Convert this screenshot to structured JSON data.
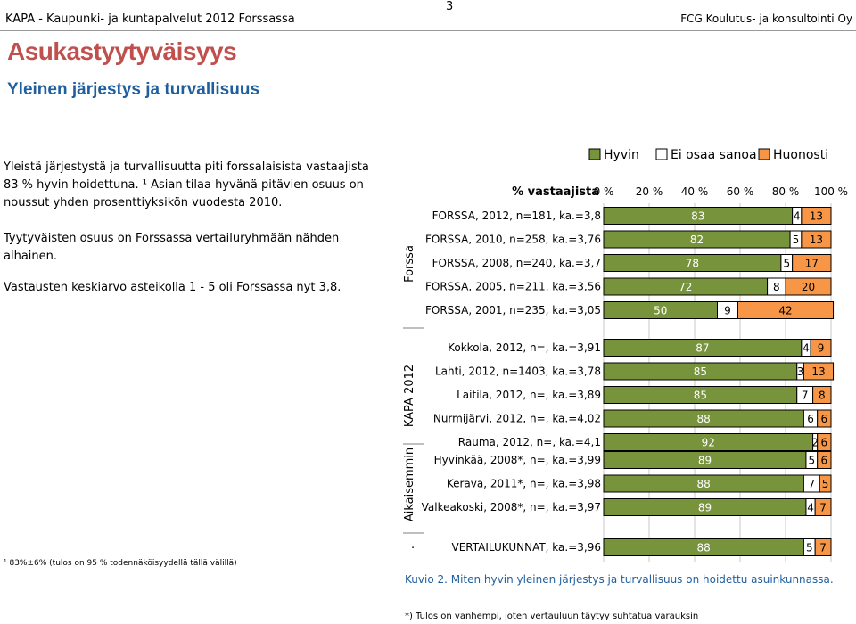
{
  "header": {
    "left": "KAPA - Kaupunki- ja kuntapalvelut 2012 Forssassa",
    "page_number": "3",
    "right": "FCG Koulutus- ja konsultointi Oy"
  },
  "title": "Asukastyytyväisyys",
  "subtitle": "Yleinen järjestys ja turvallisuus",
  "paragraphs": [
    "Yleistä järjestystä ja turvallisuutta piti forssalaisista vastaajista 83 % hyvin hoidettuna. ¹ Asian tilaa hyvänä pitävien osuus on noussut yhden prosenttiyksikön vuodesta 2010.",
    "Tyytyväisten osuus on Forssassa vertailuryhmään nähden alhainen.",
    "Vastausten keskiarvo asteikolla 1 - 5 oli Forssassa nyt 3,8."
  ],
  "footnote": "¹ 83%±6% (tulos on 95 % todennäköisyydellä tällä välillä)",
  "caption": "Kuvio 2. Miten hyvin yleinen järjestys ja turvallisuus on hoidettu asuinkunnassa.",
  "bottom_note": "*) Tulos on vanhempi, joten vertauluun täytyy suhtatua varauksin",
  "colors": {
    "hyvin": "#77933c",
    "ei_osaa": "#ffffff",
    "huonosti": "#f79646",
    "caption": "#1f5f9f",
    "title": "#c0504d",
    "subtitle": "#1f5f9f"
  },
  "chart_data": {
    "type": "bar",
    "orientation": "horizontal",
    "stacked": true,
    "axis_title": "% vastaajista",
    "x_ticks": [
      "0 %",
      "20 %",
      "40 %",
      "60 %",
      "80 %",
      "100 %"
    ],
    "xlim": [
      0,
      100
    ],
    "legend": [
      "Hyvin",
      "Ei osaa sanoa",
      "Huonosti"
    ],
    "legend_position": "top",
    "groups": [
      {
        "label": "Forssa",
        "rows": [
          {
            "label": "FORSSA, 2012, n=181, ka.=3,8",
            "values": [
              83,
              4,
              13
            ]
          },
          {
            "label": "FORSSA, 2010, n=258, ka.=3,76",
            "values": [
              82,
              5,
              13
            ]
          },
          {
            "label": "FORSSA, 2008, n=240, ka.=3,7",
            "values": [
              78,
              5,
              17
            ]
          },
          {
            "label": "FORSSA, 2005, n=211, ka.=3,56",
            "values": [
              72,
              8,
              20
            ]
          },
          {
            "label": "FORSSA, 2001, n=235, ka.=3,05",
            "values": [
              50,
              9,
              42
            ]
          }
        ]
      },
      {
        "label": "KAPA 2012",
        "rows": [
          {
            "label": "Kokkola, 2012, n=, ka.=3,91",
            "values": [
              87,
              4,
              9
            ]
          },
          {
            "label": "Lahti, 2012, n=1403, ka.=3,78",
            "values": [
              85,
              3,
              13
            ]
          },
          {
            "label": "Laitila, 2012, n=, ka.=3,89",
            "values": [
              85,
              7,
              8
            ]
          },
          {
            "label": "Nurmijärvi, 2012, n=, ka.=4,02",
            "values": [
              88,
              6,
              6
            ]
          },
          {
            "label": "Rauma, 2012, n=, ka.=4,1",
            "values": [
              92,
              2,
              6
            ]
          }
        ]
      },
      {
        "label": "Aikaisemmin",
        "rows": [
          {
            "label": "Hyvinkää, 2008*, n=, ka.=3,99",
            "values": [
              89,
              5,
              6
            ]
          },
          {
            "label": "Kerava, 2011*, n=, ka.=3,98",
            "values": [
              88,
              7,
              5
            ]
          },
          {
            "label": "Valkeakoski, 2008*, n=, ka.=3,97",
            "values": [
              89,
              4,
              7
            ]
          }
        ]
      },
      {
        "label": "·",
        "rows": [
          {
            "label": "VERTAILUKUNNAT, ka.=3,96",
            "values": [
              88,
              5,
              7
            ]
          }
        ]
      }
    ]
  }
}
